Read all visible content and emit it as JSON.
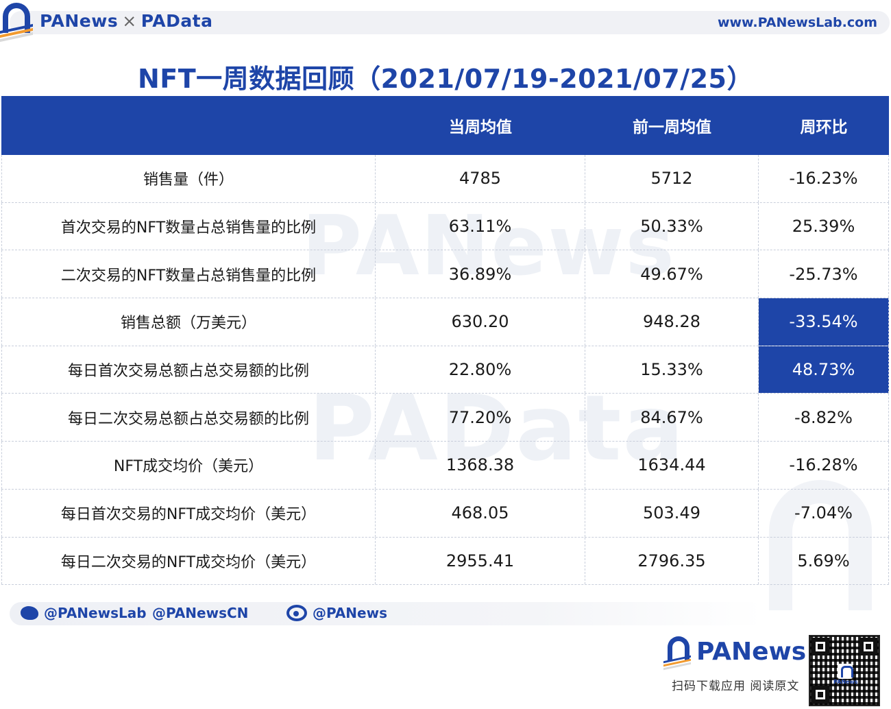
{
  "header": {
    "brand_left": "PANews",
    "brand_sep": "×",
    "brand_right": "PAData",
    "site": "www.PANewsLab.com"
  },
  "title": "NFT一周数据回顾（2021/07/19-2021/07/25）",
  "watermark": {
    "top": "PANews",
    "bottom": "PAData"
  },
  "table": {
    "headers": [
      "",
      "当周均值",
      "前一周均值",
      "周环比"
    ],
    "rows": [
      {
        "label": "销售量（件）",
        "current": "4785",
        "previous": "5712",
        "change": "-16.23%",
        "highlight": false
      },
      {
        "label": "首次交易的NFT数量占总销售量的比例",
        "current": "63.11%",
        "previous": "50.33%",
        "change": "25.39%",
        "highlight": false
      },
      {
        "label": "二次交易的NFT数量占总销售量的比例",
        "current": "36.89%",
        "previous": "49.67%",
        "change": "-25.73%",
        "highlight": false
      },
      {
        "label": "销售总额（万美元）",
        "current": "630.20",
        "previous": "948.28",
        "change": "-33.54%",
        "highlight": true
      },
      {
        "label": "每日首次交易总额占总交易额的比例",
        "current": "22.80%",
        "previous": "15.33%",
        "change": "48.73%",
        "highlight": true
      },
      {
        "label": "每日二次交易总额占总交易额的比例",
        "current": "77.20%",
        "previous": "84.67%",
        "change": "-8.82%",
        "highlight": false
      },
      {
        "label": "NFT成交均价（美元）",
        "current": "1368.38",
        "previous": "1634.44",
        "change": "-16.28%",
        "highlight": false
      },
      {
        "label": "每日首次交易的NFT成交均价（美元）",
        "current": "468.05",
        "previous": "503.49",
        "change": "-7.04%",
        "highlight": false
      },
      {
        "label": "每日二次交易的NFT成交均价（美元）",
        "current": "2955.41",
        "previous": "2796.35",
        "change": "5.69%",
        "highlight": false
      }
    ]
  },
  "footer": {
    "twitter1": "@PANewsLab",
    "twitter2": "@PANewsCN",
    "weibo": "@PANews",
    "brand": "PANews",
    "cta": "扫码下载应用  阅读原文",
    "qr_label": "PANews"
  },
  "colors": {
    "primary": "#1e45a8",
    "stripe1": "#1e45a8",
    "stripe2": "#f29a2e",
    "stripe3": "#d9d9d9"
  },
  "icons": [
    "panews-logo-icon",
    "twitter-icon",
    "weibo-icon",
    "qr-code"
  ]
}
